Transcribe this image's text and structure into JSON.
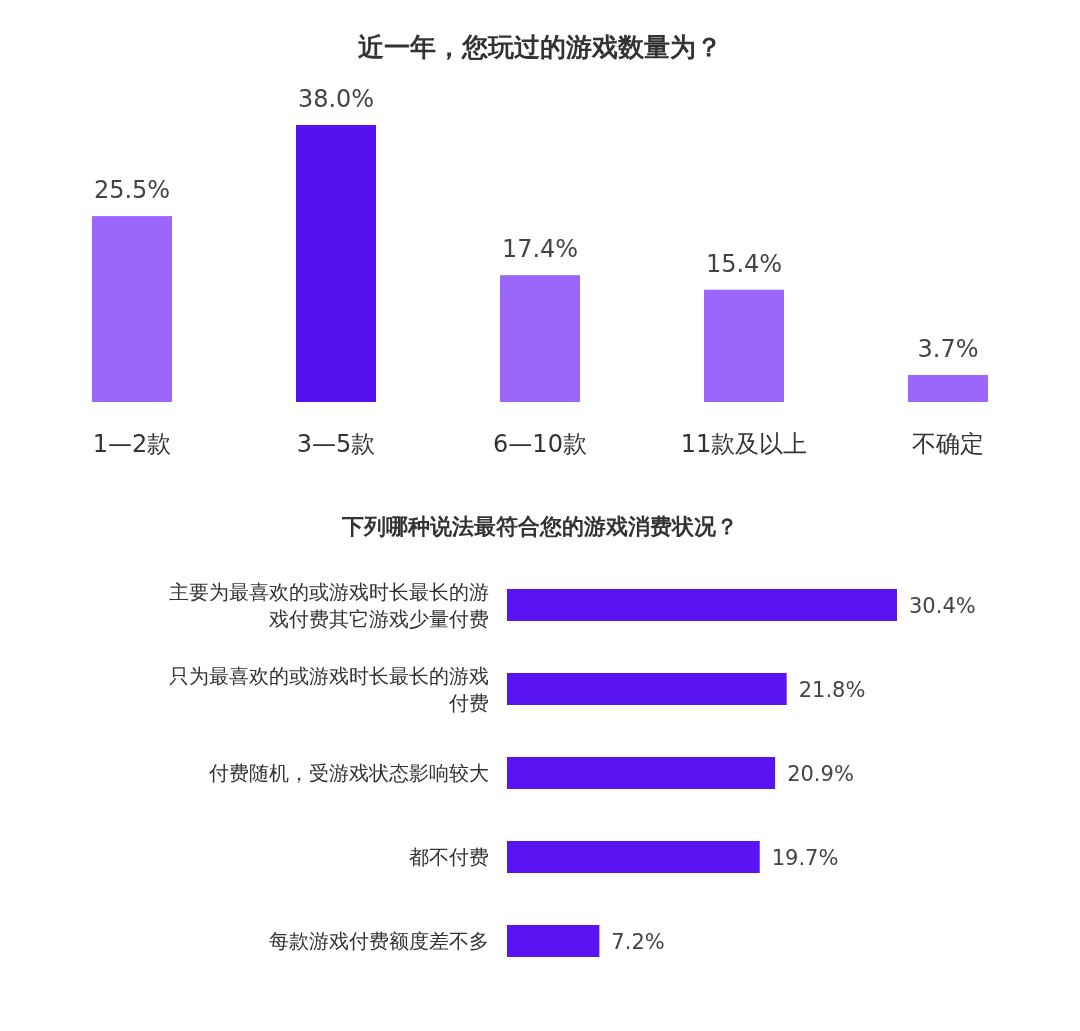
{
  "chart_data": [
    {
      "type": "bar",
      "title": "近一年，您玩过的游戏数量为？",
      "categories": [
        "1—2款",
        "3—5款",
        "6—10款",
        "11款及以上",
        "不确定"
      ],
      "values": [
        25.5,
        38.0,
        17.4,
        15.4,
        3.7
      ],
      "value_labels": [
        "25.5%",
        "38.0%",
        "17.4%",
        "15.4%",
        "3.7%"
      ],
      "colors": [
        "#9b66fb",
        "#5512ee",
        "#9b66fb",
        "#9b66fb",
        "#9b66fb"
      ]
    },
    {
      "type": "bar",
      "orientation": "horizontal",
      "title": "下列哪种说法最符合您的游戏消费状况？",
      "categories": [
        "主要为最喜欢的或游戏时长最长的游戏付费其它游戏少量付费",
        "只为最喜欢的或游戏时长最长的游戏付费",
        "付费随机，受游戏状态影响较大",
        "都不付费",
        "每款游戏付费额度差不多"
      ],
      "values": [
        30.4,
        21.8,
        20.9,
        19.7,
        7.2
      ],
      "value_labels": [
        "30.4%",
        "21.8%",
        "20.9%",
        "19.7%",
        "7.2%"
      ],
      "color": "#5a14f2"
    }
  ]
}
